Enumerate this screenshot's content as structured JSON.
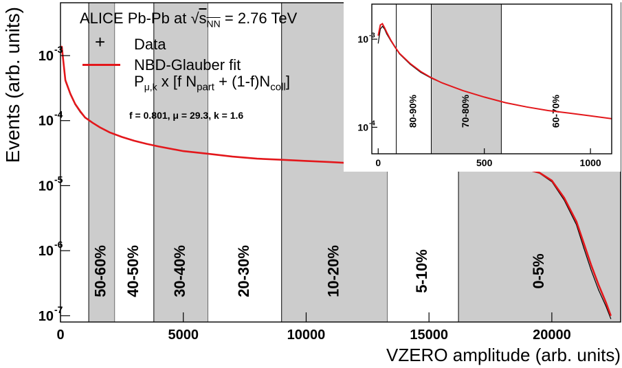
{
  "colors": {
    "fit": "#e3171b",
    "data": "#000000",
    "band": "#cccccc"
  },
  "legend": {
    "title_prefix": "ALICE Pb-Pb at",
    "title_sqrt": "s",
    "title_sub": "NN",
    "title_suffix": "= 2.76 TeV",
    "data_label": "Data",
    "fit_label": "NBD-Glauber fit",
    "formula_P": "P",
    "formula_P_sub": "μ,k",
    "formula_mid": "x [f N",
    "formula_sub1": "part",
    "formula_mid2": "+ (1-f)N",
    "formula_sub2": "coll",
    "formula_end": "]",
    "params": "f = 0.801, μ = 29.3, k = 1.6"
  },
  "chart_data": [
    {
      "type": "line",
      "xlabel": "VZERO amplitude (arb. units)",
      "ylabel": "Events (arb. units)",
      "xlim": [
        0,
        22800
      ],
      "ylim": [
        8e-08,
        0.0065
      ],
      "yscale": "log",
      "x_ticks": [
        "0",
        "5000",
        "10000",
        "15000",
        "20000"
      ],
      "y_ticks": [
        "10",
        "10",
        "10",
        "10",
        "10"
      ],
      "y_tick_exponents": [
        "-3",
        "-4",
        "-5",
        "-6",
        "-7"
      ],
      "centrality_bands": [
        {
          "label": "0-5%",
          "x_range": [
            16200,
            22800
          ],
          "shaded": true
        },
        {
          "label": "5-10%",
          "x_range": [
            13300,
            16200
          ],
          "shaded": false
        },
        {
          "label": "10-20%",
          "x_range": [
            9000,
            13300
          ],
          "shaded": true
        },
        {
          "label": "20-30%",
          "x_range": [
            6000,
            9000
          ],
          "shaded": false
        },
        {
          "label": "30-40%",
          "x_range": [
            3800,
            6000
          ],
          "shaded": true
        },
        {
          "label": "40-50%",
          "x_range": [
            2200,
            3800
          ],
          "shaded": false
        },
        {
          "label": "50-60%",
          "x_range": [
            1150,
            2200
          ],
          "shaded": true
        }
      ],
      "series": [
        {
          "name": "Data",
          "x": [
            50,
            200,
            400,
            600,
            800,
            1000,
            1300,
            1600,
            2000,
            2500,
            3000,
            3500,
            4000,
            5000,
            6000,
            7000,
            8000,
            9000,
            10000,
            11000,
            12000,
            13000,
            14000,
            15000,
            16000,
            17000,
            18000,
            19000,
            19500,
            20000,
            20500,
            21000,
            21300,
            21600,
            21900,
            22200,
            22400
          ],
          "y": [
            0.0013,
            0.0004,
            0.00025,
            0.000175,
            0.000135,
            0.00011,
            9.2e-05,
            7.8e-05,
            6.6e-05,
            5.6e-05,
            4.9e-05,
            4.4e-05,
            4e-05,
            3.4e-05,
            3.1e-05,
            2.8e-05,
            2.6e-05,
            2.5e-05,
            2.4e-05,
            2.3e-05,
            2.2e-05,
            2.15e-05,
            2.1e-05,
            2.05e-05,
            2e-05,
            1.95e-05,
            1.9e-05,
            1.75e-05,
            1.55e-05,
            1.15e-05,
            6e-06,
            2.5e-06,
            1.1e-06,
            5e-07,
            2.5e-07,
            1.4e-07,
            9e-08
          ]
        },
        {
          "name": "NBD-Glauber fit",
          "x": [
            50,
            200,
            400,
            600,
            800,
            1000,
            1300,
            1600,
            2000,
            2500,
            3000,
            3500,
            4000,
            5000,
            6000,
            7000,
            8000,
            9000,
            10000,
            11000,
            12000,
            13000,
            14000,
            15000,
            16000,
            17000,
            18000,
            19000,
            19500,
            20000,
            20500,
            21000,
            21300,
            21600,
            21900,
            22200,
            22400
          ],
          "y": [
            0.0014,
            0.00042,
            0.00026,
            0.00018,
            0.00014,
            0.000112,
            9.3e-05,
            7.9e-05,
            6.6e-05,
            5.6e-05,
            4.9e-05,
            4.4e-05,
            4e-05,
            3.4e-05,
            3.1e-05,
            2.8e-05,
            2.6e-05,
            2.5e-05,
            2.4e-05,
            2.3e-05,
            2.2e-05,
            2.15e-05,
            2.1e-05,
            2.05e-05,
            2e-05,
            1.95e-05,
            1.9e-05,
            1.77e-05,
            1.58e-05,
            1.2e-05,
            6.5e-06,
            2.8e-06,
            1.3e-06,
            6e-07,
            3e-07,
            1.6e-07,
            1e-07
          ]
        }
      ]
    },
    {
      "type": "line",
      "title": "inset",
      "xlim": [
        -30,
        1100
      ],
      "ylim": [
        5e-05,
        0.0025
      ],
      "yscale": "log",
      "x_ticks": [
        "0",
        "500",
        "1000"
      ],
      "y_ticks": [
        "10",
        "10"
      ],
      "y_tick_exponents": [
        "-3",
        "-4"
      ],
      "centrality_bands": [
        {
          "label": "80-90%",
          "x_range": [
            85,
            250
          ],
          "shaded": false
        },
        {
          "label": "70-80%",
          "x_range": [
            250,
            580
          ],
          "shaded": true
        },
        {
          "label": "60-70%",
          "x_range": [
            580,
            1100
          ],
          "shaded": false
        }
      ],
      "series": [
        {
          "name": "Data",
          "x": [
            0,
            10,
            20,
            30,
            40,
            60,
            80,
            100,
            150,
            200,
            250,
            300,
            400,
            500,
            600,
            700,
            800,
            900,
            1000,
            1100
          ],
          "y": [
            0.0009,
            0.0013,
            0.0014,
            0.0013,
            0.00115,
            0.00095,
            0.0008,
            0.00068,
            0.00052,
            0.00042,
            0.00036,
            0.00032,
            0.00026,
            0.00022,
            0.00019,
            0.00017,
            0.000155,
            0.000145,
            0.000135,
            0.000125
          ]
        },
        {
          "name": "NBD-Glauber fit",
          "x": [
            0,
            10,
            20,
            30,
            40,
            60,
            80,
            100,
            150,
            200,
            250,
            300,
            400,
            500,
            600,
            700,
            800,
            900,
            1000,
            1100
          ],
          "y": [
            0.0011,
            0.00145,
            0.0015,
            0.00135,
            0.0012,
            0.00097,
            0.00081,
            0.00069,
            0.00053,
            0.00043,
            0.000365,
            0.00032,
            0.00026,
            0.00022,
            0.00019,
            0.00017,
            0.000155,
            0.000145,
            0.000135,
            0.000125
          ]
        }
      ]
    }
  ]
}
